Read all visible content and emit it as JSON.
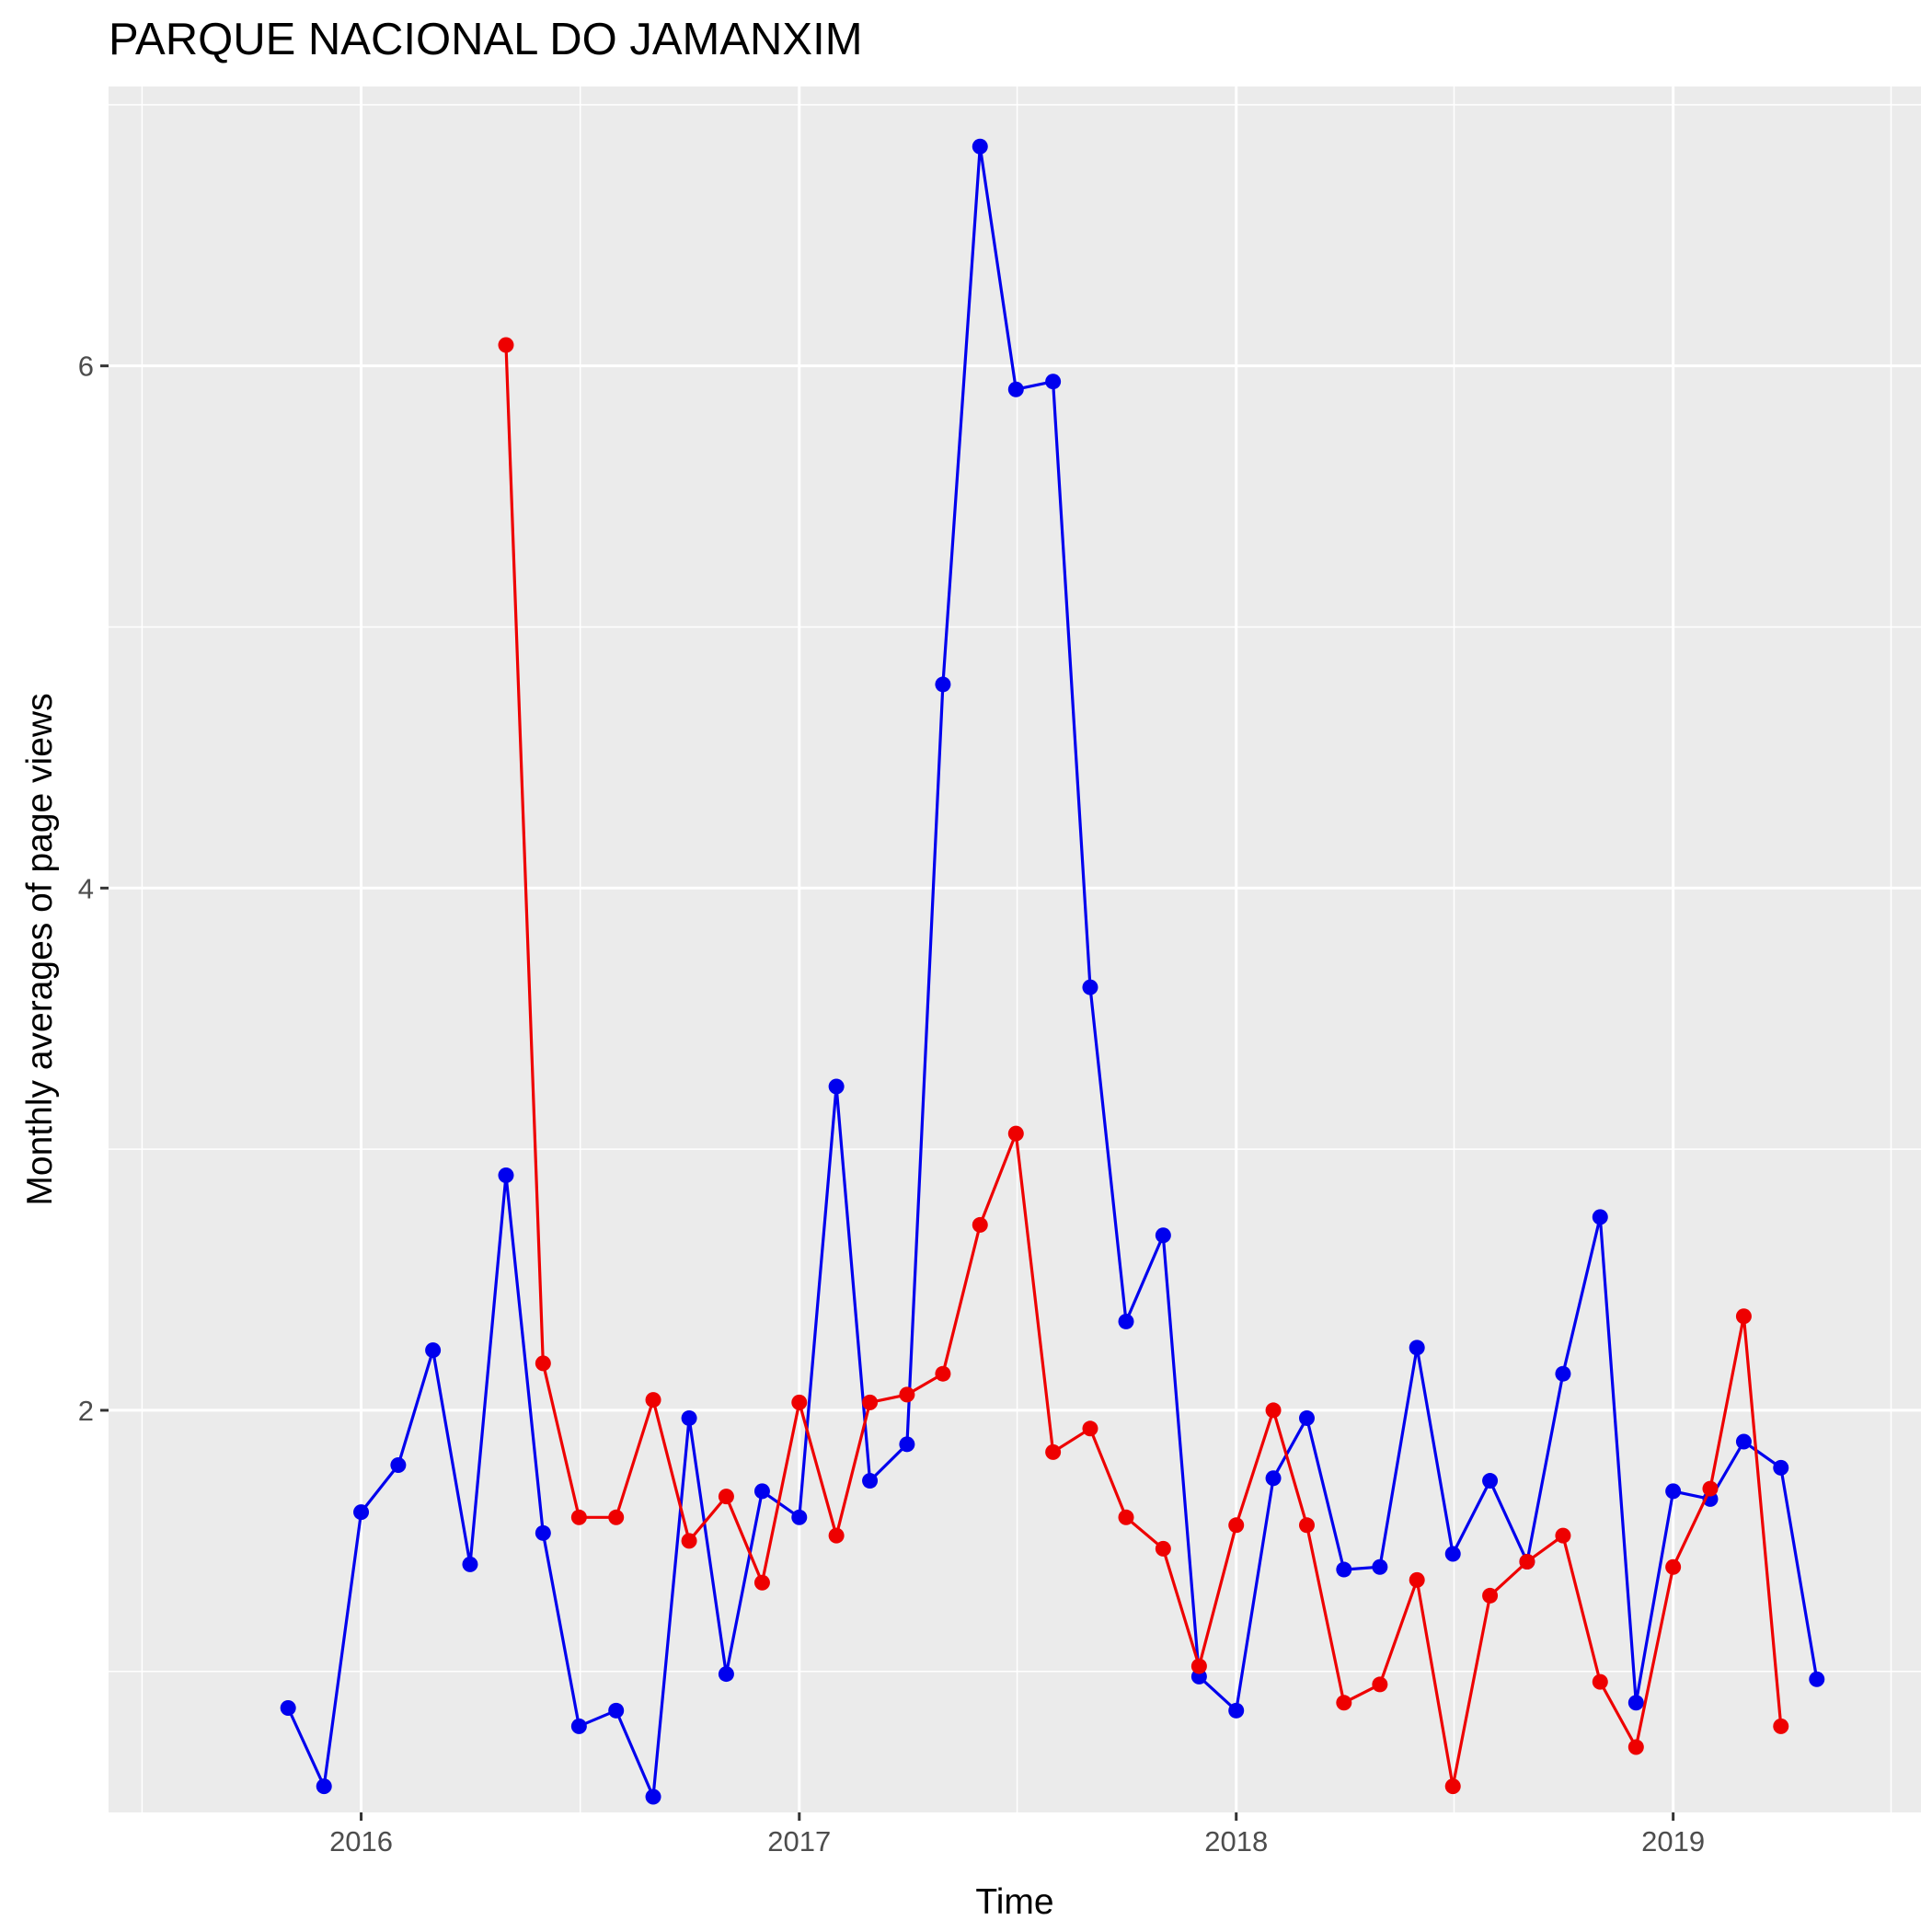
{
  "chart_data": {
    "type": "line",
    "title": "PARQUE NACIONAL DO JAMANXIM",
    "xlabel": "Time",
    "ylabel": "Monthly averages of page views",
    "x_ticks": [
      "2016",
      "2017",
      "2018",
      "2019"
    ],
    "y_ticks": [
      "2",
      "4",
      "6"
    ],
    "xlim": [
      "2015-06-04",
      "2019-07-27"
    ],
    "ylim": [
      0.46,
      7.07
    ],
    "grid": true,
    "legend": "none",
    "series": [
      {
        "color": "#0000ee",
        "points": [
          [
            "2015-11-01",
            0.86
          ],
          [
            "2015-12-01",
            0.56
          ],
          [
            "2016-01-01",
            1.61
          ],
          [
            "2016-02-01",
            1.79
          ],
          [
            "2016-03-01",
            2.23
          ],
          [
            "2016-04-01",
            1.41
          ],
          [
            "2016-05-01",
            2.9
          ],
          [
            "2016-06-01",
            1.53
          ],
          [
            "2016-07-01",
            0.79
          ],
          [
            "2016-08-01",
            0.85
          ],
          [
            "2016-09-01",
            0.52
          ],
          [
            "2016-10-01",
            1.97
          ],
          [
            "2016-11-01",
            0.99
          ],
          [
            "2016-12-01",
            1.69
          ],
          [
            "2017-01-01",
            1.59
          ],
          [
            "2017-02-01",
            3.24
          ],
          [
            "2017-03-01",
            1.73
          ],
          [
            "2017-04-01",
            1.87
          ],
          [
            "2017-05-01",
            4.78
          ],
          [
            "2017-06-01",
            6.84
          ],
          [
            "2017-07-01",
            5.91
          ],
          [
            "2017-08-01",
            5.94
          ],
          [
            "2017-09-01",
            3.62
          ],
          [
            "2017-10-01",
            2.34
          ],
          [
            "2017-11-01",
            2.67
          ],
          [
            "2017-12-01",
            0.98
          ],
          [
            "2018-01-01",
            0.85
          ],
          [
            "2018-02-01",
            1.74
          ],
          [
            "2018-03-01",
            1.97
          ],
          [
            "2018-04-01",
            1.39
          ],
          [
            "2018-05-01",
            1.4
          ],
          [
            "2018-06-01",
            2.24
          ],
          [
            "2018-07-01",
            1.45
          ],
          [
            "2018-08-01",
            1.73
          ],
          [
            "2018-09-01",
            1.42
          ],
          [
            "2018-10-01",
            2.14
          ],
          [
            "2018-11-01",
            2.74
          ],
          [
            "2018-12-01",
            0.88
          ],
          [
            "2019-01-01",
            1.69
          ],
          [
            "2019-02-01",
            1.66
          ],
          [
            "2019-03-01",
            1.88
          ],
          [
            "2019-04-01",
            1.78
          ],
          [
            "2019-05-01",
            0.97
          ]
        ]
      },
      {
        "color": "#ee0000",
        "points": [
          [
            "2016-05-01",
            6.08
          ],
          [
            "2016-06-01",
            2.18
          ],
          [
            "2016-07-01",
            1.59
          ],
          [
            "2016-08-01",
            1.59
          ],
          [
            "2016-09-01",
            2.04
          ],
          [
            "2016-10-01",
            1.5
          ],
          [
            "2016-11-01",
            1.67
          ],
          [
            "2016-12-01",
            1.34
          ],
          [
            "2017-01-01",
            2.03
          ],
          [
            "2017-02-01",
            1.52
          ],
          [
            "2017-03-01",
            2.03
          ],
          [
            "2017-04-01",
            2.06
          ],
          [
            "2017-05-01",
            2.14
          ],
          [
            "2017-06-01",
            2.71
          ],
          [
            "2017-07-01",
            3.06
          ],
          [
            "2017-08-01",
            1.84
          ],
          [
            "2017-09-01",
            1.93
          ],
          [
            "2017-10-01",
            1.59
          ],
          [
            "2017-11-01",
            1.47
          ],
          [
            "2017-12-01",
            1.02
          ],
          [
            "2018-01-01",
            1.56
          ],
          [
            "2018-02-01",
            2.0
          ],
          [
            "2018-03-01",
            1.56
          ],
          [
            "2018-04-01",
            0.88
          ],
          [
            "2018-05-01",
            0.95
          ],
          [
            "2018-06-01",
            1.35
          ],
          [
            "2018-07-01",
            0.56
          ],
          [
            "2018-08-01",
            1.29
          ],
          [
            "2018-09-01",
            1.42
          ],
          [
            "2018-10-01",
            1.52
          ],
          [
            "2018-11-01",
            0.96
          ],
          [
            "2018-12-01",
            0.71
          ],
          [
            "2019-01-01",
            1.4
          ],
          [
            "2019-02-01",
            1.7
          ],
          [
            "2019-03-01",
            2.36
          ],
          [
            "2019-04-01",
            0.79
          ]
        ]
      }
    ]
  }
}
